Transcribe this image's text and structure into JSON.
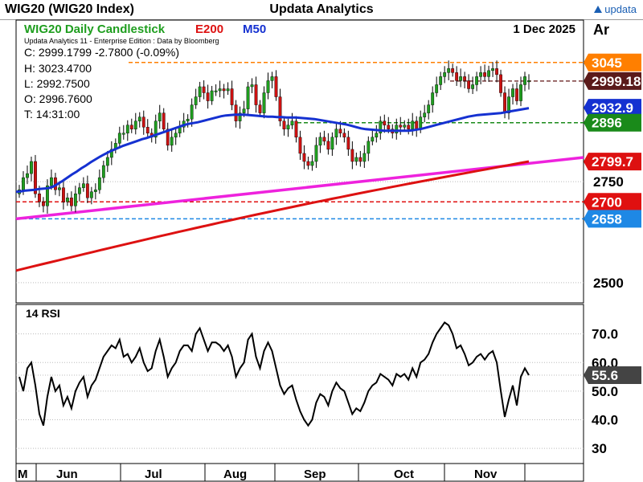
{
  "window": {
    "title": "WIG20 (WIG20 Index)",
    "center_title": "Updata Analytics",
    "brand": "updata"
  },
  "header": {
    "chart_title": "WIG20 Daily Candlestick",
    "legend_e200": "E200",
    "legend_m50": "M50",
    "date": "1 Dec 2025",
    "axis_unit": "Ar",
    "edition": "Updata Analytics 11 - Enterprise Edition : Data by Bloomberg"
  },
  "ohlc": {
    "close": "C: 2999.1799  -2.7800 (-0.09%)",
    "high": "H: 3023.4700",
    "low": "L: 2992.7500",
    "open": "O: 2996.7600",
    "time": "T: 14:31:00"
  },
  "colors": {
    "e200": "#dd1111",
    "m50": "#1531d1",
    "trend": "#ee22dd",
    "rsi": "#000000",
    "bull": "#1f9e1f",
    "bear": "#cc1111",
    "orange": "#ff7f00",
    "green_level": "#1a8a1a",
    "blue_level": "#1e88e5",
    "red_level": "#e01010",
    "close_level": "#7a3b3b"
  },
  "chart_data": {
    "type": "candlestick",
    "title": "WIG20 Daily Candlestick",
    "price_range": [
      2450,
      3150
    ],
    "price_ticks": [
      2750,
      2500
    ],
    "price_levels": [
      {
        "label": "3045",
        "value": 3045,
        "color": "#ff7f00"
      },
      {
        "label": "2999.18",
        "value": 2999.18,
        "color": "#5a1a1a"
      },
      {
        "label": "2932.9",
        "value": 2932.9,
        "color": "#1531d1"
      },
      {
        "label": "2896",
        "value": 2896,
        "color": "#1a8a1a"
      },
      {
        "label": "2799.7",
        "value": 2799.7,
        "color": "#dd1111"
      },
      {
        "label": "2700",
        "value": 2700,
        "color": "#e01010"
      },
      {
        "label": "2658",
        "value": 2658,
        "color": "#1e88e5"
      }
    ],
    "x_labels": [
      "M",
      "Jun",
      "Jul",
      "Aug",
      "Sep",
      "Oct",
      "Nov"
    ],
    "close": [
      2730,
      2760,
      2770,
      2800,
      2720,
      2700,
      2690,
      2740,
      2760,
      2730,
      2735,
      2700,
      2710,
      2690,
      2720,
      2735,
      2745,
      2710,
      2725,
      2730,
      2760,
      2790,
      2810,
      2830,
      2845,
      2870,
      2870,
      2890,
      2880,
      2900,
      2910,
      2885,
      2870,
      2860,
      2900,
      2920,
      2880,
      2840,
      2860,
      2870,
      2885,
      2900,
      2905,
      2940,
      2960,
      2985,
      2970,
      2950,
      2975,
      2975,
      2980,
      2975,
      2980,
      2940,
      2900,
      2920,
      2930,
      2985,
      2990,
      2940,
      2920,
      2970,
      3000,
      3010,
      2960,
      2900,
      2880,
      2890,
      2900,
      2860,
      2820,
      2800,
      2790,
      2800,
      2840,
      2860,
      2850,
      2830,
      2860,
      2880,
      2870,
      2860,
      2830,
      2800,
      2810,
      2800,
      2820,
      2850,
      2860,
      2870,
      2900,
      2890,
      2880,
      2870,
      2890,
      2885,
      2890,
      2880,
      2900,
      2880,
      2910,
      2920,
      2940,
      2970,
      2990,
      3010,
      3020,
      3030,
      3020,
      3000,
      3010,
      3000,
      2980,
      2990,
      3010,
      3020,
      3010,
      3025,
      3030,
      3015,
      2970,
      2920,
      2960,
      2980,
      2950,
      2990,
      3010,
      3000
    ],
    "open": [
      2720,
      2730,
      2760,
      2770,
      2800,
      2720,
      2700,
      2690,
      2740,
      2760,
      2730,
      2735,
      2700,
      2710,
      2690,
      2720,
      2735,
      2745,
      2710,
      2725,
      2730,
      2760,
      2790,
      2810,
      2830,
      2845,
      2870,
      2870,
      2890,
      2880,
      2900,
      2910,
      2885,
      2870,
      2860,
      2900,
      2920,
      2880,
      2840,
      2860,
      2870,
      2885,
      2900,
      2905,
      2940,
      2960,
      2985,
      2970,
      2950,
      2975,
      2975,
      2980,
      2975,
      2980,
      2940,
      2900,
      2920,
      2930,
      2985,
      2990,
      2940,
      2920,
      2970,
      3000,
      3010,
      2960,
      2900,
      2880,
      2890,
      2900,
      2860,
      2820,
      2800,
      2790,
      2800,
      2840,
      2860,
      2850,
      2830,
      2860,
      2880,
      2870,
      2860,
      2830,
      2800,
      2810,
      2800,
      2820,
      2850,
      2860,
      2870,
      2900,
      2890,
      2880,
      2870,
      2890,
      2885,
      2890,
      2880,
      2900,
      2880,
      2910,
      2920,
      2940,
      2970,
      2990,
      3010,
      3020,
      3030,
      3020,
      3000,
      3010,
      3000,
      2980,
      2990,
      3010,
      3020,
      3010,
      3025,
      3030,
      3015,
      2970,
      2920,
      2960,
      2980,
      2950,
      2990,
      2997
    ],
    "m50": [
      2725,
      2726,
      2728,
      2729,
      2730,
      2732,
      2733,
      2734,
      2738,
      2745,
      2752,
      2760,
      2768,
      2775,
      2783,
      2790,
      2798,
      2805,
      2812,
      2818,
      2824,
      2829,
      2834,
      2839,
      2843,
      2847,
      2851,
      2855,
      2858,
      2862,
      2866,
      2870,
      2874,
      2878,
      2882,
      2886,
      2890,
      2893,
      2895,
      2897,
      2900,
      2903,
      2906,
      2909,
      2912,
      2914,
      2915,
      2916,
      2916,
      2916,
      2915,
      2914,
      2913,
      2912,
      2911,
      2911,
      2910,
      2910,
      2909,
      2909,
      2909,
      2908,
      2907,
      2906,
      2905,
      2903,
      2901,
      2899,
      2897,
      2895,
      2893,
      2891,
      2888,
      2885,
      2882,
      2880,
      2879,
      2878,
      2877,
      2876,
      2876,
      2876,
      2876,
      2876,
      2876,
      2877,
      2879,
      2881,
      2884,
      2887,
      2890,
      2893,
      2896,
      2899,
      2902,
      2905,
      2908,
      2911,
      2913,
      2915,
      2916,
      2917,
      2918,
      2919,
      2920,
      2922,
      2924,
      2926,
      2928,
      2930,
      2932
    ],
    "rsi": [
      55,
      50,
      58,
      60,
      52,
      42,
      38,
      48,
      55,
      50,
      52,
      45,
      48,
      44,
      50,
      53,
      55,
      48,
      52,
      54,
      58,
      62,
      64,
      66,
      65,
      68,
      62,
      63,
      60,
      62,
      65,
      60,
      57,
      58,
      64,
      68,
      62,
      55,
      58,
      60,
      64,
      66,
      66,
      64,
      70,
      72,
      68,
      64,
      67,
      67,
      66,
      64,
      66,
      62,
      55,
      58,
      60,
      68,
      70,
      62,
      58,
      64,
      67,
      64,
      58,
      52,
      49,
      51,
      52,
      47,
      43,
      40,
      38,
      40,
      46,
      49,
      48,
      45,
      50,
      53,
      51,
      50,
      46,
      42,
      44,
      43,
      46,
      50,
      52,
      53,
      56,
      55,
      54,
      52,
      56,
      55,
      56,
      54,
      58,
      55,
      60,
      61,
      63,
      67,
      70,
      72,
      74,
      73,
      70,
      65,
      66,
      63,
      59,
      60,
      62,
      63,
      61,
      63,
      64,
      60,
      50,
      41,
      47,
      52,
      45,
      55,
      58,
      55.6
    ],
    "rsi_levels": [
      70.0,
      60.0,
      55.6,
      50.0,
      40.0,
      30.0
    ],
    "rsi_labels": [
      "70.0",
      "60.0",
      "55.6",
      "50.0",
      "40.0",
      "30"
    ],
    "rsi_title": "14 RSI",
    "rsi_range": [
      25,
      80
    ]
  }
}
